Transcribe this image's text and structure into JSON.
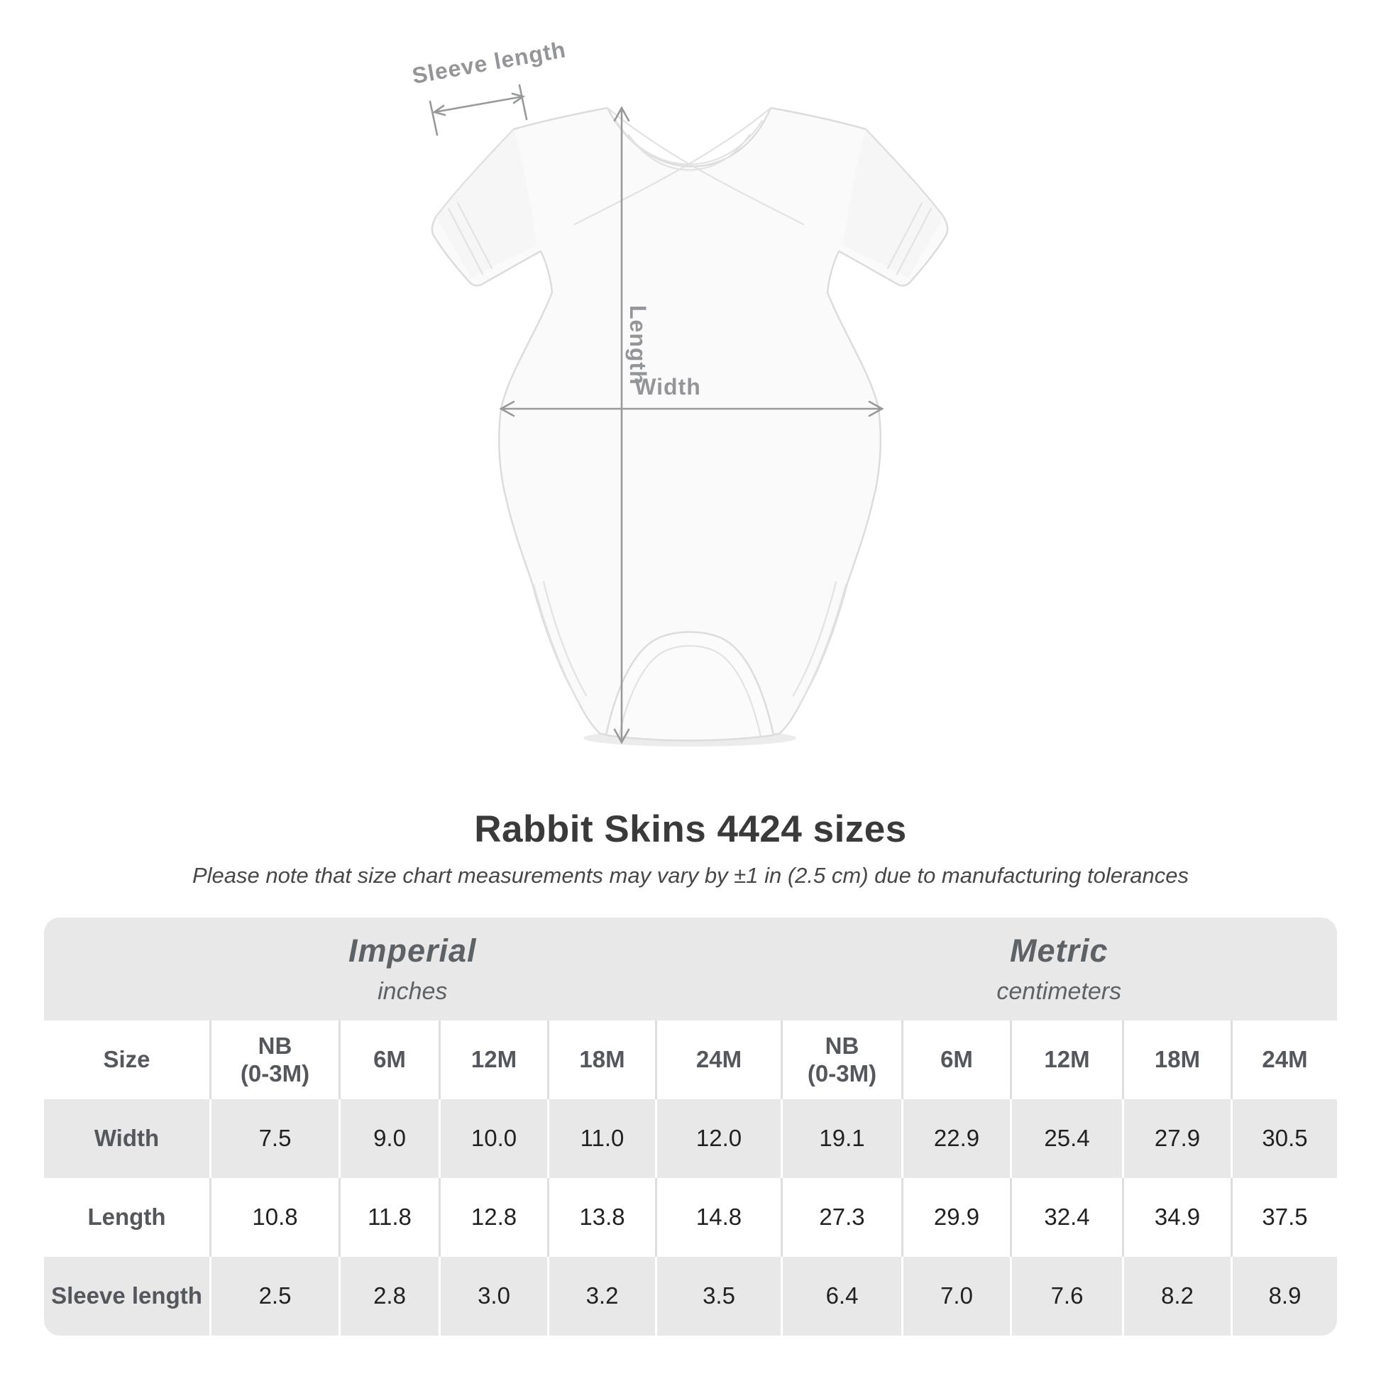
{
  "title": "Rabbit Skins 4424 sizes",
  "subtitle": "Please note that size chart measurements may vary by ±1 in (2.5 cm) due to manufacturing tolerances",
  "diagram": {
    "sleeve_length_label": "Sleeve length",
    "length_label": "Length",
    "width_label": "Width"
  },
  "table": {
    "unit_groups": [
      {
        "label": "Imperial",
        "sublabel": "inches"
      },
      {
        "label": "Metric",
        "sublabel": "centimeters"
      }
    ],
    "size_col_header": "Size",
    "column_headers": [
      "NB\n(0-3M)",
      "6M",
      "12M",
      "18M",
      "24M",
      "NB\n(0-3M)",
      "6M",
      "12M",
      "18M",
      "24M"
    ],
    "rows": [
      {
        "label": "Width",
        "values": [
          "7.5",
          "9.0",
          "10.0",
          "11.0",
          "12.0",
          "19.1",
          "22.9",
          "25.4",
          "27.9",
          "30.5"
        ]
      },
      {
        "label": "Length",
        "values": [
          "10.8",
          "11.8",
          "12.8",
          "13.8",
          "14.8",
          "27.3",
          "29.9",
          "32.4",
          "34.9",
          "37.5"
        ]
      },
      {
        "label": "Sleeve length",
        "values": [
          "2.5",
          "2.8",
          "3.0",
          "3.2",
          "3.5",
          "6.4",
          "7.0",
          "7.6",
          "8.2",
          "8.9"
        ]
      }
    ]
  },
  "colors": {
    "arrow_gray": "#97999b",
    "row_gray": "#e8e8e9",
    "title_text": "#3a3a3a",
    "header_text": "#54585d",
    "value_text": "#1f2123"
  }
}
